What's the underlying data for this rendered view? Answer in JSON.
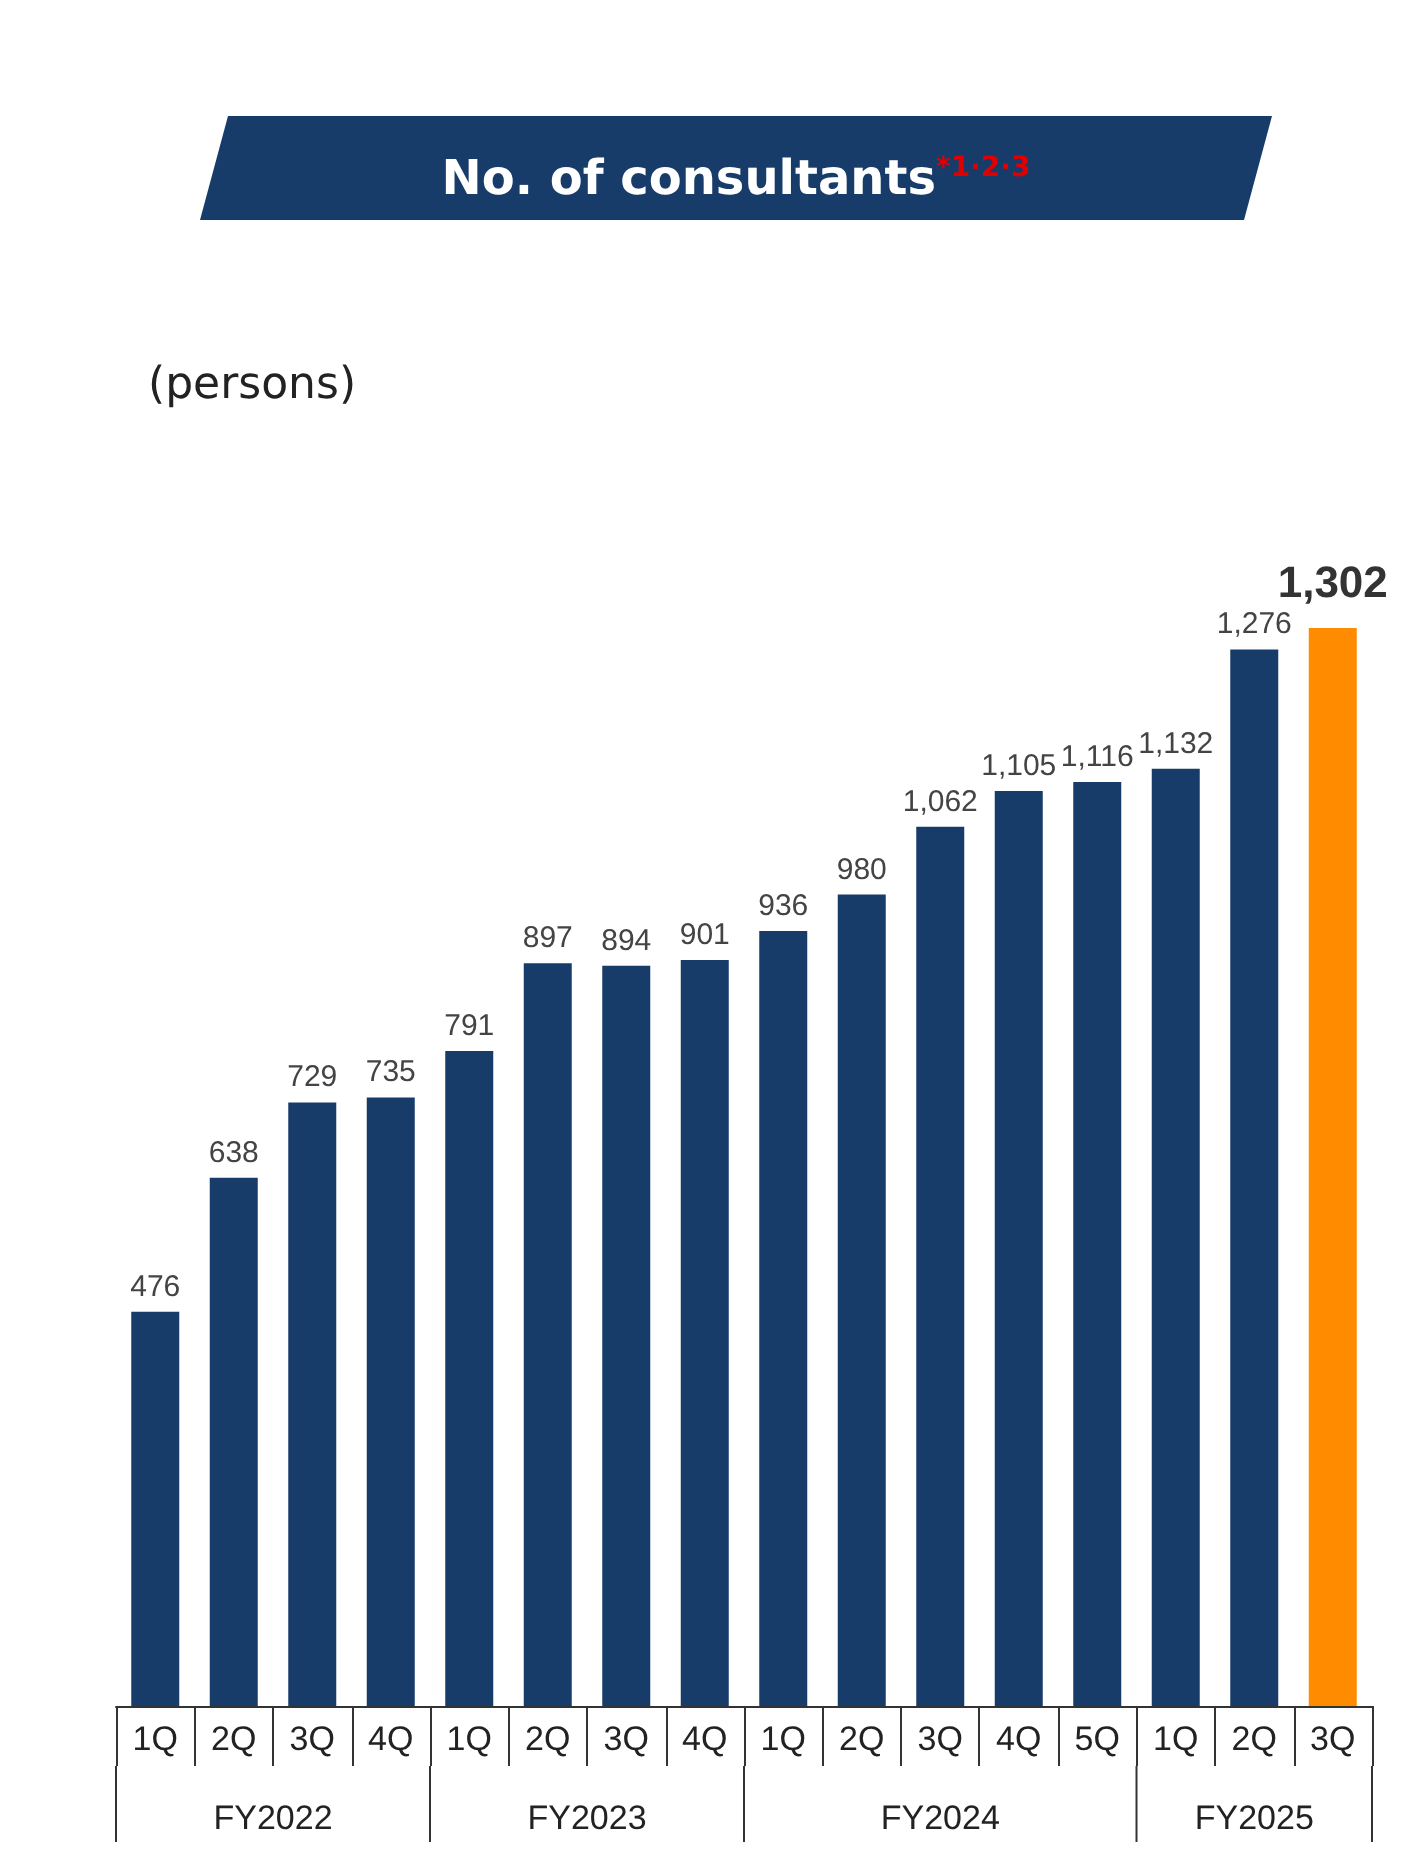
{
  "chart_data": {
    "type": "bar",
    "title": "No. of consultants$^{*1·2·3}$",
    "ylabel": "(persons)",
    "categories": [
      "1Q",
      "2Q",
      "3Q",
      "4Q",
      "1Q",
      "2Q",
      "3Q",
      "4Q",
      "1Q",
      "2Q",
      "3Q",
      "4Q",
      "5Q",
      "1Q",
      "2Q",
      "3Q"
    ],
    "values": [
      476,
      638,
      729,
      735,
      791,
      897,
      894,
      901,
      936,
      980,
      1062,
      1105,
      1116,
      1132,
      1276,
      1302
    ],
    "value_labels": [
      "476",
      "638",
      "729",
      "735",
      "791",
      "897",
      "894",
      "901",
      "936",
      "980",
      "1,062",
      "1,105",
      "1,116",
      "1,132",
      "1,276",
      "1,302"
    ],
    "colors": [
      "#173c6a",
      "#173c6a",
      "#173c6a",
      "#173c6a",
      "#173c6a",
      "#173c6a",
      "#173c6a",
      "#173c6a",
      "#173c6a",
      "#173c6a",
      "#173c6a",
      "#173c6a",
      "#173c6a",
      "#173c6a",
      "#173c6a",
      "#ff8c00"
    ],
    "annotations": [
      "FY2022",
      "FY2023",
      "FY2024",
      "FY2025"
    ]
  }
}
